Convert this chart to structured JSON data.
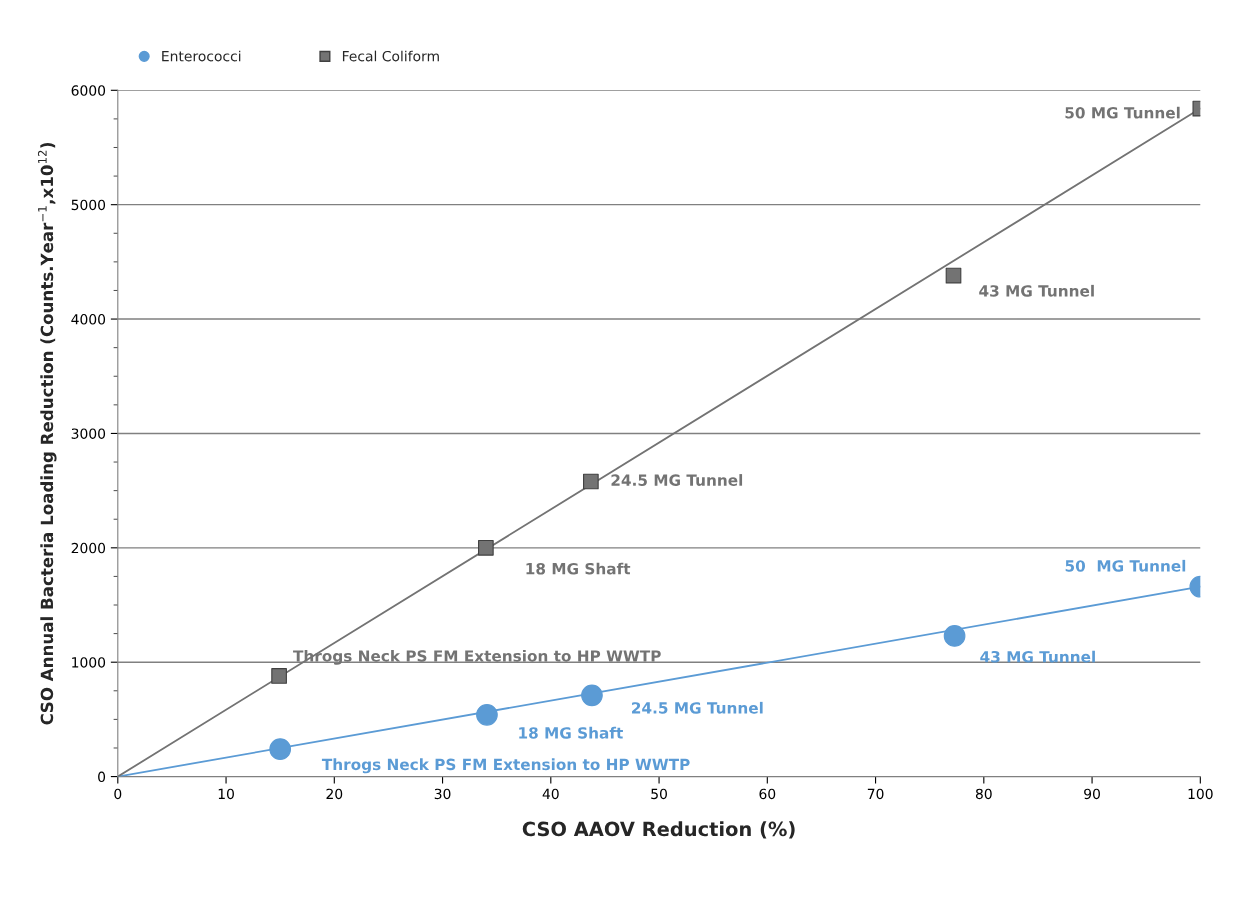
{
  "chart_data": {
    "type": "scatter",
    "xlabel": "CSO AAOV Reduction (%)",
    "ylabel": "CSO Annual Bacteria Loading Reduction (Counts.Year$^{−1}$,x10$^{12}$)",
    "series": [
      {
        "name": "Enterococci",
        "color": "#5b9bd5",
        "marker": "circle",
        "x": [
          15,
          34.1,
          43.8,
          77.3,
          100
        ],
        "values": [
          240,
          540,
          710,
          1230,
          1660
        ]
      },
      {
        "name": "Fecal Coliform",
        "color": "#737373",
        "marker": "square",
        "x": [
          14.9,
          34,
          43.7,
          77.2,
          100
        ],
        "values": [
          880,
          2000,
          2580,
          4380,
          5840
        ]
      },
      {
        "type": "line",
        "color": "#5b9bd5",
        "x": [
          0,
          100
        ],
        "values": [
          0,
          1660
        ]
      },
      {
        "type": "line",
        "color": "#737373",
        "x": [
          0,
          100
        ],
        "values": [
          0,
          5840
        ]
      }
    ],
    "annotations": [
      {
        "text": "Throgs Neck PS FM Extension to HP WWTP",
        "x": 15,
        "y": 240
      },
      {
        "text": "18 MG Shaft",
        "x": 34.1,
        "y": 540
      },
      {
        "text": "24.5 MG Tunnel",
        "x": 43.8,
        "y": 710
      },
      {
        "text": "43 MG Tunnel",
        "x": 77.3,
        "y": 1230
      },
      {
        "text": "50  MG Tunnel",
        "x": 100,
        "y": 1660
      },
      {
        "text": "Throgs Neck PS FM Extension to HP WWTP",
        "x": 14.9,
        "y": 880
      },
      {
        "text": "18 MG Shaft",
        "x": 34,
        "y": 2000
      },
      {
        "text": "24.5 MG Tunnel",
        "x": 43.7,
        "y": 2580
      },
      {
        "text": "43 MG Tunnel",
        "x": 77.2,
        "y": 4380
      },
      {
        "text": "50 MG Tunnel",
        "x": 100,
        "y": 5840
      }
    ],
    "xlim": [
      0,
      100
    ],
    "xticks": [
      0,
      10,
      20,
      30,
      40,
      50,
      60,
      70,
      80,
      90,
      100
    ],
    "ylim": [
      0,
      6000
    ],
    "yticks": [
      0,
      1000,
      2000,
      3000,
      4000,
      5000,
      6000
    ],
    "grid": "y",
    "legend": "top left"
  }
}
